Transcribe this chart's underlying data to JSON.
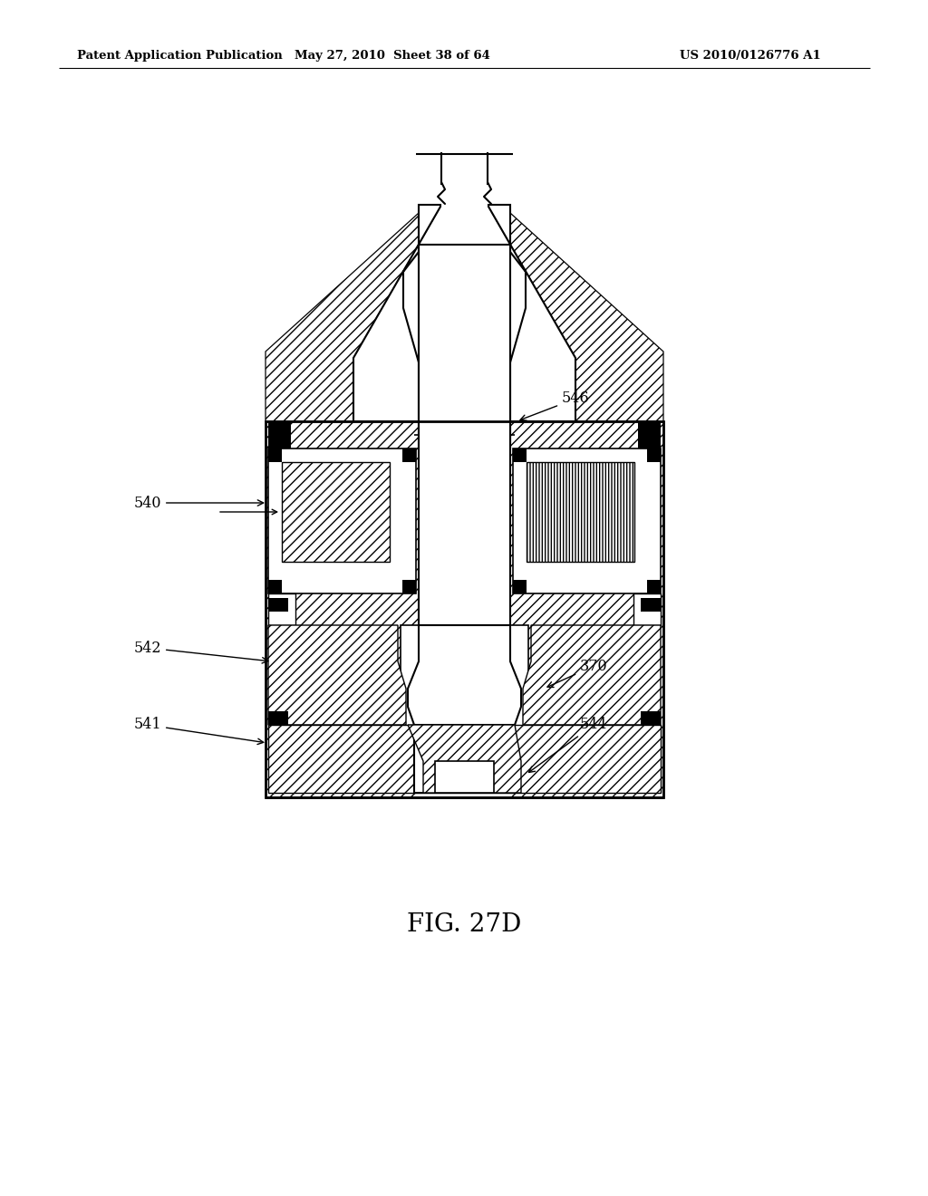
{
  "header_left": "Patent Application Publication",
  "header_mid": "May 27, 2010  Sheet 38 of 64",
  "header_right": "US 2010/0126776 A1",
  "figure_label": "FIG. 27D",
  "bg_color": "#ffffff"
}
